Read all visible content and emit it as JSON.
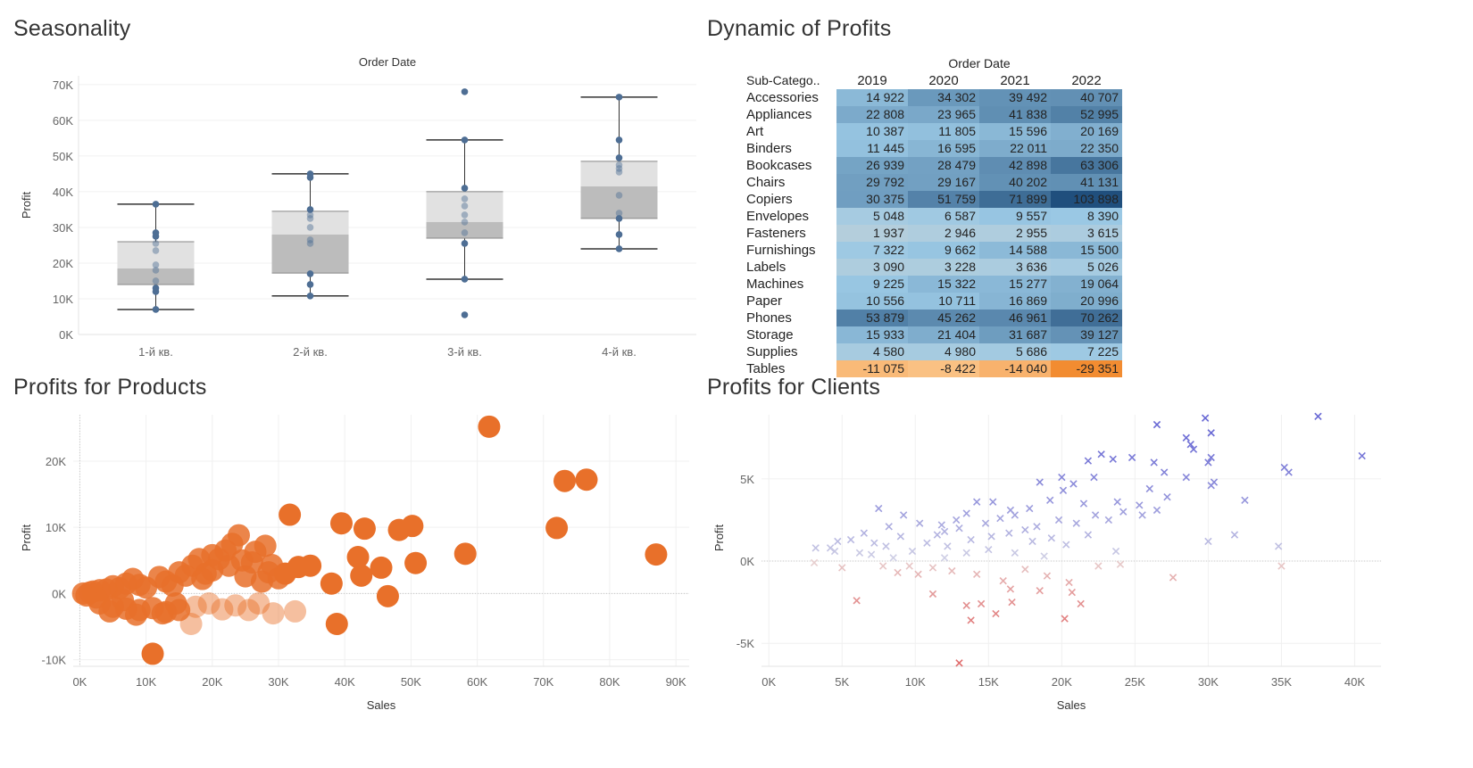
{
  "seasonality": {
    "title": "Seasonality",
    "chart_data": {
      "type": "boxplot",
      "title": "Seasonality",
      "column_header": "Order Date",
      "ylabel": "Profit",
      "ylim": [
        0,
        70000
      ],
      "yticks": [
        0,
        10000,
        20000,
        30000,
        40000,
        50000,
        60000,
        70000
      ],
      "ytick_labels": [
        "0K",
        "10K",
        "20K",
        "30K",
        "40K",
        "50K",
        "60K",
        "70K"
      ],
      "categories": [
        "1-й кв.",
        "2-й кв.",
        "3-й кв.",
        "4-й кв."
      ],
      "boxes": [
        {
          "min": 7000,
          "q1": 14000,
          "median": 18500,
          "q3": 26000,
          "max": 36500
        },
        {
          "min": 10800,
          "q1": 17200,
          "median": 28000,
          "q3": 34500,
          "max": 45000
        },
        {
          "min": 15500,
          "q1": 27000,
          "median": 31500,
          "q3": 40000,
          "max": 54500
        },
        {
          "min": 24000,
          "q1": 32500,
          "median": 41500,
          "q3": 48500,
          "max": 66500
        }
      ],
      "points": [
        [
          7000,
          12000,
          13000,
          15000,
          18000,
          19500,
          23500,
          25500,
          27500,
          28500,
          36500
        ],
        [
          10800,
          14000,
          17000,
          25500,
          26500,
          30000,
          32500,
          33500,
          35000,
          44000,
          45000
        ],
        [
          5500,
          15500,
          25500,
          28500,
          31500,
          33500,
          36000,
          38000,
          41000,
          54500,
          68000
        ],
        [
          24000,
          28000,
          32500,
          34000,
          39000,
          45500,
          46500,
          47500,
          49500,
          54500,
          66500
        ]
      ],
      "colors": {
        "point": "#4e6e94",
        "box_upper": "#e1e1e1",
        "box_lower": "#bcbcbc",
        "whisker": "#333333"
      }
    }
  },
  "dynamic": {
    "title": "Dynamic of Profits",
    "chart_data": {
      "type": "heatmap",
      "title": "Dynamic of Profits",
      "column_header": "Order Date",
      "row_header": "Sub-Catego..",
      "columns": [
        "2019",
        "2020",
        "2021",
        "2022"
      ],
      "rows": [
        {
          "label": "Accessories",
          "values": [
            14922,
            34302,
            39492,
            40707
          ],
          "text": [
            "14 922",
            "34 302",
            "39 492",
            "40 707"
          ]
        },
        {
          "label": "Appliances",
          "values": [
            22808,
            23965,
            41838,
            52995
          ],
          "text": [
            "22 808",
            "23 965",
            "41 838",
            "52 995"
          ]
        },
        {
          "label": "Art",
          "values": [
            10387,
            11805,
            15596,
            20169
          ],
          "text": [
            "10 387",
            "11 805",
            "15 596",
            "20 169"
          ]
        },
        {
          "label": "Binders",
          "values": [
            11445,
            16595,
            22011,
            22350
          ],
          "text": [
            "11 445",
            "16 595",
            "22 011",
            "22 350"
          ]
        },
        {
          "label": "Bookcases",
          "values": [
            26939,
            28479,
            42898,
            63306
          ],
          "text": [
            "26 939",
            "28 479",
            "42 898",
            "63 306"
          ]
        },
        {
          "label": "Chairs",
          "values": [
            29792,
            29167,
            40202,
            41131
          ],
          "text": [
            "29 792",
            "29 167",
            "40 202",
            "41 131"
          ]
        },
        {
          "label": "Copiers",
          "values": [
            30375,
            51759,
            71899,
            103898
          ],
          "text": [
            "30 375",
            "51 759",
            "71 899",
            "103 898"
          ]
        },
        {
          "label": "Envelopes",
          "values": [
            5048,
            6587,
            9557,
            8390
          ],
          "text": [
            "5 048",
            "6 587",
            "9 557",
            "8 390"
          ]
        },
        {
          "label": "Fasteners",
          "values": [
            1937,
            2946,
            2955,
            3615
          ],
          "text": [
            "1 937",
            "2 946",
            "2 955",
            "3 615"
          ]
        },
        {
          "label": "Furnishings",
          "values": [
            7322,
            9662,
            14588,
            15500
          ],
          "text": [
            "7 322",
            "9 662",
            "14 588",
            "15 500"
          ]
        },
        {
          "label": "Labels",
          "values": [
            3090,
            3228,
            3636,
            5026
          ],
          "text": [
            "3 090",
            "3 228",
            "3 636",
            "5 026"
          ]
        },
        {
          "label": "Machines",
          "values": [
            9225,
            15322,
            15277,
            19064
          ],
          "text": [
            "9 225",
            "15 322",
            "15 277",
            "19 064"
          ]
        },
        {
          "label": "Paper",
          "values": [
            10556,
            10711,
            16869,
            20996
          ],
          "text": [
            "10 556",
            "10 711",
            "16 869",
            "20 996"
          ]
        },
        {
          "label": "Phones",
          "values": [
            53879,
            45262,
            46961,
            70262
          ],
          "text": [
            "53 879",
            "45 262",
            "46 961",
            "70 262"
          ]
        },
        {
          "label": "Storage",
          "values": [
            15933,
            21404,
            31687,
            39127
          ],
          "text": [
            "15 933",
            "21 404",
            "31 687",
            "39 127"
          ]
        },
        {
          "label": "Supplies",
          "values": [
            4580,
            4980,
            5686,
            7225
          ],
          "text": [
            "4 580",
            "4 980",
            "5 686",
            "7 225"
          ]
        },
        {
          "label": "Tables",
          "values": [
            -11075,
            -8422,
            -14040,
            -29351
          ],
          "text": [
            "-11 075",
            "-8 422",
            "-14 040",
            "-29 351"
          ]
        }
      ],
      "colors": {
        "positive": "#2a5783",
        "negative": "#f3933a",
        "neutral": "#d9d9d9"
      }
    }
  },
  "products": {
    "title": "Profits for Products",
    "chart_data": {
      "type": "scatter",
      "title": "Profits for Products",
      "xlabel": "Sales",
      "ylabel": "Profit",
      "xlim": [
        -1000,
        92000
      ],
      "ylim": [
        -11000,
        27000
      ],
      "xticks": [
        0,
        10000,
        20000,
        30000,
        40000,
        50000,
        60000,
        70000,
        80000,
        90000
      ],
      "xtick_labels": [
        "0K",
        "10K",
        "20K",
        "30K",
        "40K",
        "50K",
        "60K",
        "70K",
        "80K",
        "90K"
      ],
      "yticks": [
        -10000,
        0,
        10000,
        20000
      ],
      "ytick_labels": [
        "-10K",
        "0K",
        "10K",
        "20K"
      ],
      "color": "#e8702a",
      "points": [
        [
          61800,
          25200
        ],
        [
          73200,
          17000
        ],
        [
          76500,
          17200
        ],
        [
          72000,
          9900
        ],
        [
          87000,
          5900
        ],
        [
          31700,
          11900
        ],
        [
          39500,
          10600
        ],
        [
          43000,
          9800
        ],
        [
          48200,
          9600
        ],
        [
          50200,
          10200
        ],
        [
          42000,
          5500
        ],
        [
          45500,
          3900
        ],
        [
          50700,
          4600
        ],
        [
          58200,
          6000
        ],
        [
          34800,
          4200
        ],
        [
          28000,
          7200
        ],
        [
          24000,
          8800
        ],
        [
          22000,
          6500
        ],
        [
          20000,
          5800
        ],
        [
          26500,
          6300
        ],
        [
          29000,
          4300
        ],
        [
          33000,
          4000
        ],
        [
          38800,
          -4600
        ],
        [
          11000,
          -9100
        ],
        [
          16800,
          -4600
        ],
        [
          29200,
          -3000
        ],
        [
          32500,
          -2700
        ],
        [
          38000,
          1500
        ],
        [
          42500,
          2700
        ],
        [
          46500,
          -400
        ],
        [
          20000,
          3500
        ],
        [
          17000,
          4200
        ],
        [
          15000,
          3200
        ],
        [
          18500,
          2200
        ],
        [
          25000,
          2600
        ],
        [
          27500,
          1800
        ],
        [
          30000,
          2300
        ],
        [
          14000,
          1200
        ],
        [
          12000,
          2500
        ],
        [
          9000,
          1300
        ],
        [
          8000,
          2200
        ],
        [
          6000,
          800
        ],
        [
          4000,
          600
        ],
        [
          2000,
          300
        ],
        [
          500,
          0
        ],
        [
          1500,
          150
        ],
        [
          3000,
          500
        ],
        [
          5000,
          1100
        ],
        [
          7000,
          1500
        ],
        [
          10000,
          900
        ],
        [
          13000,
          1800
        ],
        [
          16000,
          2700
        ],
        [
          19000,
          3000
        ],
        [
          22500,
          4200
        ],
        [
          24500,
          5000
        ],
        [
          21000,
          5200
        ],
        [
          23000,
          7500
        ],
        [
          18000,
          5200
        ],
        [
          26000,
          4700
        ],
        [
          28500,
          3200
        ],
        [
          31000,
          3000
        ],
        [
          3000,
          -1500
        ],
        [
          5000,
          -2000
        ],
        [
          7000,
          -2300
        ],
        [
          9000,
          -2500
        ],
        [
          11000,
          -2200
        ],
        [
          13000,
          -2800
        ],
        [
          15000,
          -2500
        ],
        [
          17500,
          -2000
        ],
        [
          19500,
          -1500
        ],
        [
          21500,
          -2400
        ],
        [
          23500,
          -1800
        ],
        [
          25500,
          -2500
        ],
        [
          27000,
          -1500
        ],
        [
          4500,
          -2700
        ],
        [
          8500,
          -3200
        ],
        [
          12500,
          -3000
        ],
        [
          6500,
          -1000
        ],
        [
          2500,
          -600
        ],
        [
          1000,
          -300
        ],
        [
          14500,
          -1500
        ]
      ]
    }
  },
  "clients": {
    "title": "Profits for Clients",
    "chart_data": {
      "type": "scatter",
      "title": "Profits for Clients",
      "xlabel": "Sales",
      "ylabel": "Profit",
      "xlim": [
        -500,
        41800
      ],
      "ylim": [
        -6400,
        8900
      ],
      "xticks": [
        0,
        5000,
        10000,
        15000,
        20000,
        25000,
        30000,
        35000,
        40000
      ],
      "xtick_labels": [
        "0K",
        "5K",
        "10K",
        "15K",
        "20K",
        "25K",
        "30K",
        "35K",
        "40K"
      ],
      "yticks": [
        -5000,
        0,
        5000
      ],
      "ytick_labels": [
        "-5K",
        "0K",
        "5K"
      ],
      "colors": {
        "positive": "#6767d4",
        "negative": "#e06c6c",
        "neutral": "#d0d0d0"
      },
      "marker": "x",
      "points": [
        [
          37500,
          8800
        ],
        [
          40500,
          6400
        ],
        [
          29800,
          8700
        ],
        [
          26500,
          8300
        ],
        [
          30200,
          7800
        ],
        [
          28500,
          7500
        ],
        [
          28800,
          7100
        ],
        [
          29000,
          6800
        ],
        [
          30200,
          6300
        ],
        [
          30000,
          6000
        ],
        [
          35200,
          5700
        ],
        [
          35500,
          5400
        ],
        [
          30400,
          4800
        ],
        [
          30200,
          4600
        ],
        [
          32500,
          3700
        ],
        [
          31800,
          1600
        ],
        [
          30000,
          1200
        ],
        [
          34800,
          900
        ],
        [
          35000,
          -300
        ],
        [
          27600,
          -1000
        ],
        [
          23500,
          6200
        ],
        [
          24800,
          6300
        ],
        [
          22700,
          6500
        ],
        [
          21800,
          6100
        ],
        [
          26300,
          6000
        ],
        [
          27000,
          5400
        ],
        [
          28500,
          5100
        ],
        [
          26000,
          4400
        ],
        [
          27200,
          3900
        ],
        [
          25300,
          3400
        ],
        [
          23800,
          3600
        ],
        [
          22200,
          5100
        ],
        [
          20800,
          4700
        ],
        [
          20000,
          5100
        ],
        [
          18500,
          4800
        ],
        [
          19200,
          3700
        ],
        [
          20100,
          4300
        ],
        [
          21500,
          3500
        ],
        [
          17800,
          3200
        ],
        [
          16500,
          3100
        ],
        [
          14200,
          3600
        ],
        [
          15300,
          3600
        ],
        [
          13500,
          2900
        ],
        [
          12800,
          2500
        ],
        [
          11800,
          2200
        ],
        [
          10300,
          2300
        ],
        [
          9200,
          2800
        ],
        [
          7500,
          3200
        ],
        [
          8200,
          2100
        ],
        [
          6500,
          1700
        ],
        [
          5600,
          1300
        ],
        [
          4700,
          1200
        ],
        [
          4200,
          800
        ],
        [
          3200,
          800
        ],
        [
          3100,
          -100
        ],
        [
          5000,
          -400
        ],
        [
          4500,
          600
        ],
        [
          7000,
          400
        ],
        [
          8500,
          200
        ],
        [
          9600,
          -300
        ],
        [
          11200,
          -400
        ],
        [
          12500,
          -600
        ],
        [
          14200,
          -800
        ],
        [
          16000,
          -1200
        ],
        [
          17500,
          -500
        ],
        [
          19000,
          -900
        ],
        [
          20500,
          -1300
        ],
        [
          22500,
          -300
        ],
        [
          24000,
          -200
        ],
        [
          23700,
          600
        ],
        [
          13500,
          -2700
        ],
        [
          13800,
          -3600
        ],
        [
          15500,
          -3200
        ],
        [
          14500,
          -2600
        ],
        [
          16600,
          -2500
        ],
        [
          13000,
          -6200
        ],
        [
          20200,
          -3500
        ],
        [
          21300,
          -2600
        ],
        [
          11200,
          -2000
        ],
        [
          16500,
          -1700
        ],
        [
          18500,
          -1800
        ],
        [
          20700,
          -1900
        ],
        [
          6000,
          -2400
        ],
        [
          9800,
          600
        ],
        [
          11500,
          1600
        ],
        [
          12000,
          1800
        ],
        [
          13000,
          2000
        ],
        [
          14800,
          2300
        ],
        [
          15800,
          2600
        ],
        [
          16800,
          2800
        ],
        [
          17500,
          1900
        ],
        [
          18300,
          2100
        ],
        [
          19800,
          2500
        ],
        [
          21000,
          2300
        ],
        [
          22300,
          2800
        ],
        [
          23200,
          2500
        ],
        [
          24200,
          3000
        ],
        [
          25500,
          2800
        ],
        [
          26500,
          3100
        ],
        [
          10800,
          1100
        ],
        [
          9000,
          1500
        ],
        [
          8000,
          900
        ],
        [
          7200,
          1100
        ],
        [
          6200,
          500
        ],
        [
          12200,
          900
        ],
        [
          13800,
          1300
        ],
        [
          15200,
          1500
        ],
        [
          16400,
          1700
        ],
        [
          18000,
          1200
        ],
        [
          19300,
          1400
        ],
        [
          20300,
          1000
        ],
        [
          21800,
          1600
        ],
        [
          10200,
          -800
        ],
        [
          12000,
          200
        ],
        [
          13500,
          500
        ],
        [
          15000,
          700
        ],
        [
          16800,
          500
        ],
        [
          18800,
          300
        ],
        [
          8800,
          -700
        ],
        [
          7800,
          -300
        ]
      ]
    }
  }
}
